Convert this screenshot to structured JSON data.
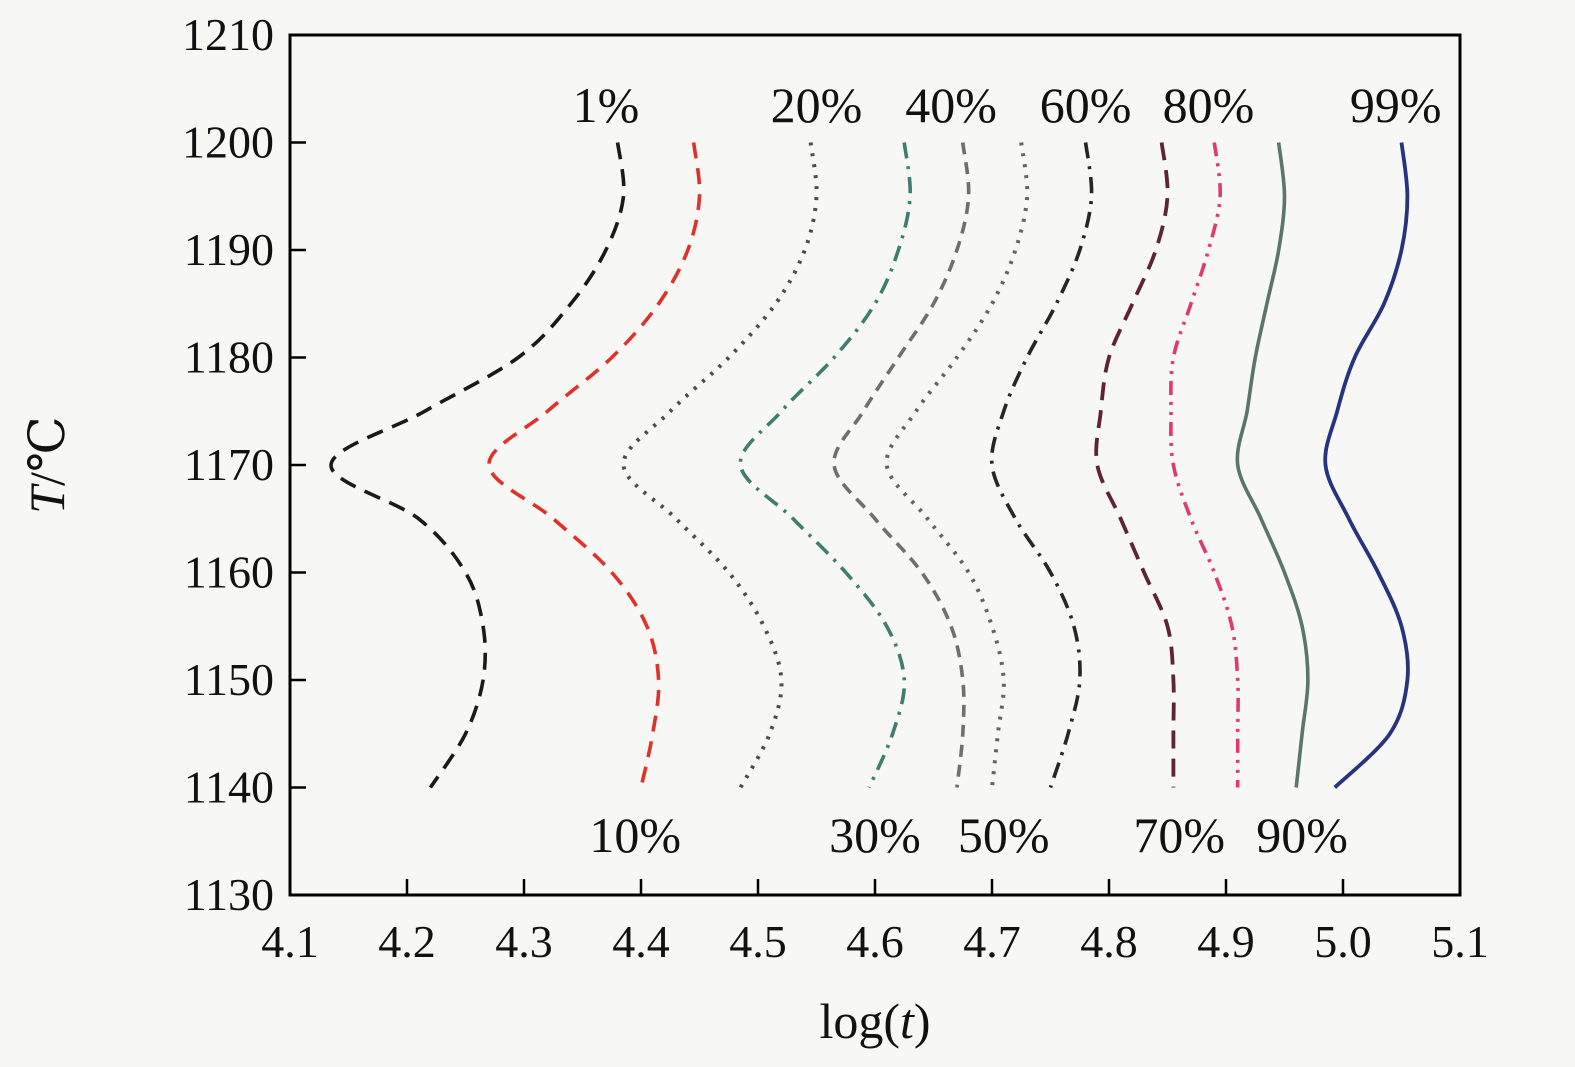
{
  "page": {
    "background": "#f7f7f6",
    "frame_color": "#000000"
  },
  "chart_data": {
    "type": "line",
    "title": "",
    "xlabel_prefix": "log(",
    "xlabel_var": "t",
    "xlabel_suffix": ")",
    "ylabel_var": "T",
    "ylabel_suffix": "/℃",
    "xlim": [
      4.1,
      5.1
    ],
    "ylim": [
      1130,
      1210
    ],
    "x_tick_labels": [
      "4.1",
      "4.2",
      "4.3",
      "4.4",
      "4.5",
      "4.6",
      "4.7",
      "4.8",
      "4.9",
      "5.0",
      "5.1"
    ],
    "x_tick_values": [
      4.1,
      4.2,
      4.3,
      4.4,
      4.5,
      4.6,
      4.7,
      4.8,
      4.9,
      5.0,
      5.1
    ],
    "y_tick_labels": [
      "1130",
      "1140",
      "1150",
      "1160",
      "1170",
      "1180",
      "1190",
      "1200",
      "1210"
    ],
    "y_tick_values": [
      1130,
      1140,
      1150,
      1160,
      1170,
      1180,
      1190,
      1200,
      1210
    ],
    "grid": false,
    "legend": "inline-labels",
    "T_values": [
      1200,
      1195,
      1190,
      1185,
      1180,
      1175,
      1170,
      1165,
      1160,
      1155,
      1150,
      1145,
      1140
    ],
    "series": [
      {
        "name": "1%",
        "color": "#1a1a1a",
        "dash": "17 10",
        "width": 3.6,
        "label_pos": "top",
        "label_x": 4.37,
        "x": [
          4.38,
          4.385,
          4.37,
          4.34,
          4.295,
          4.215,
          4.135,
          4.21,
          4.25,
          4.265,
          4.265,
          4.25,
          4.22
        ]
      },
      {
        "name": "10%",
        "color": "#e0312b",
        "dash": "16 10",
        "width": 3.6,
        "label_pos": "bottom",
        "label_x": 4.395,
        "x": [
          4.445,
          4.45,
          4.44,
          4.415,
          4.375,
          4.32,
          4.27,
          4.325,
          4.375,
          4.405,
          4.415,
          4.41,
          4.4
        ]
      },
      {
        "name": "20%",
        "color": "#4c4c4c",
        "dash": "3 8",
        "width": 4.0,
        "label_pos": "top",
        "label_x": 4.55,
        "x": [
          4.545,
          4.55,
          4.54,
          4.515,
          4.475,
          4.425,
          4.385,
          4.43,
          4.475,
          4.505,
          4.52,
          4.51,
          4.485
        ]
      },
      {
        "name": "30%",
        "color": "#3f7d6c",
        "dash": "16 8 3 8",
        "width": 3.6,
        "label_pos": "bottom",
        "label_x": 4.6,
        "x": [
          4.625,
          4.63,
          4.62,
          4.6,
          4.565,
          4.52,
          4.485,
          4.53,
          4.575,
          4.61,
          4.625,
          4.615,
          4.595
        ]
      },
      {
        "name": "40%",
        "color": "#6f6f6f",
        "dash": "12 8",
        "width": 3.6,
        "label_pos": "top",
        "label_x": 4.665,
        "x": [
          4.675,
          4.68,
          4.67,
          4.65,
          4.62,
          4.59,
          4.565,
          4.6,
          4.64,
          4.665,
          4.675,
          4.675,
          4.67
        ]
      },
      {
        "name": "50%",
        "color": "#636363",
        "dash": "3 8",
        "width": 4.0,
        "label_pos": "bottom",
        "label_x": 4.71,
        "x": [
          4.725,
          4.73,
          4.72,
          4.7,
          4.67,
          4.635,
          4.61,
          4.645,
          4.68,
          4.7,
          4.71,
          4.705,
          4.7
        ]
      },
      {
        "name": "60%",
        "color": "#262626",
        "dash": "16 8 3 8",
        "width": 3.6,
        "label_pos": "top",
        "label_x": 4.78,
        "x": [
          4.78,
          4.785,
          4.775,
          4.755,
          4.73,
          4.71,
          4.7,
          4.72,
          4.75,
          4.77,
          4.775,
          4.765,
          4.75
        ]
      },
      {
        "name": "70%",
        "color": "#5e2433",
        "dash": "18 10",
        "width": 3.8,
        "label_pos": "bottom",
        "label_x": 4.86,
        "x": [
          4.845,
          4.85,
          4.84,
          4.82,
          4.8,
          4.793,
          4.79,
          4.81,
          4.83,
          4.85,
          4.855,
          4.855,
          4.855
        ]
      },
      {
        "name": "80%",
        "color": "#e2386e",
        "dash": "14 7 3 7 3 7",
        "width": 3.6,
        "label_pos": "top",
        "label_x": 4.885,
        "x": [
          4.89,
          4.895,
          4.885,
          4.87,
          4.855,
          4.853,
          4.855,
          4.87,
          4.89,
          4.905,
          4.91,
          4.91,
          4.91
        ]
      },
      {
        "name": "90%",
        "color": "#5b7569",
        "dash": "",
        "width": 3.6,
        "label_pos": "bottom",
        "label_x": 4.965,
        "x": [
          4.945,
          4.95,
          4.945,
          4.935,
          4.925,
          4.918,
          4.91,
          4.93,
          4.95,
          4.965,
          4.97,
          4.965,
          4.96
        ]
      },
      {
        "name": "99%",
        "color": "#27337f",
        "dash": "",
        "width": 3.8,
        "label_pos": "top",
        "label_x": 5.045,
        "x": [
          5.05,
          5.055,
          5.05,
          5.035,
          5.01,
          4.995,
          4.985,
          5.005,
          5.03,
          5.05,
          5.055,
          5.04,
          4.993
        ]
      }
    ]
  }
}
